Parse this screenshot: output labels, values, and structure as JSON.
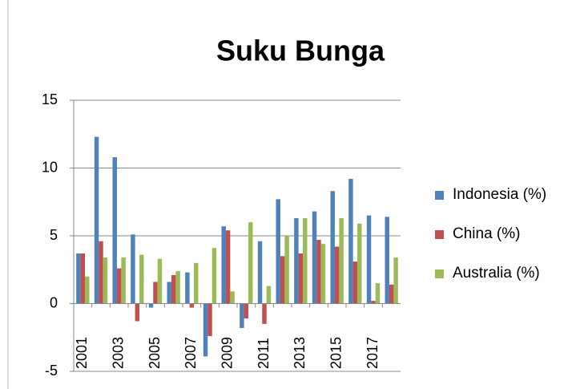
{
  "chart_data": {
    "type": "bar",
    "title": "Suku Bunga",
    "categories": [
      "2001",
      null,
      "2003",
      null,
      "2005",
      null,
      "2007",
      null,
      "2009",
      null,
      "2011",
      null,
      "2013",
      null,
      "2015",
      null,
      "2017",
      null
    ],
    "series": [
      {
        "name": "Indonesia (%)",
        "color": "#4f81bd",
        "values": [
          3.7,
          12.3,
          10.8,
          5.1,
          -0.3,
          1.6,
          2.3,
          -3.9,
          5.7,
          -1.8,
          4.6,
          7.7,
          6.3,
          6.8,
          8.3,
          9.2,
          6.5,
          6.4
        ]
      },
      {
        "name": "China (%)",
        "color": "#c0504d",
        "values": [
          3.7,
          4.6,
          2.6,
          -1.3,
          1.6,
          2.1,
          -0.3,
          -2.4,
          5.4,
          -1.1,
          -1.5,
          3.5,
          3.7,
          4.7,
          4.2,
          3.1,
          0.2,
          1.4
        ]
      },
      {
        "name": "Australia (%)",
        "color": "#9bbb59",
        "values": [
          2.0,
          3.4,
          3.4,
          3.6,
          3.3,
          2.4,
          3.0,
          4.1,
          0.9,
          6.0,
          1.3,
          5.0,
          6.3,
          4.4,
          6.3,
          5.9,
          1.5,
          3.4
        ]
      }
    ],
    "ylim": [
      -5,
      15
    ],
    "yticks": [
      -5,
      0,
      5,
      10,
      15
    ],
    "grid": true,
    "legend": "right"
  }
}
